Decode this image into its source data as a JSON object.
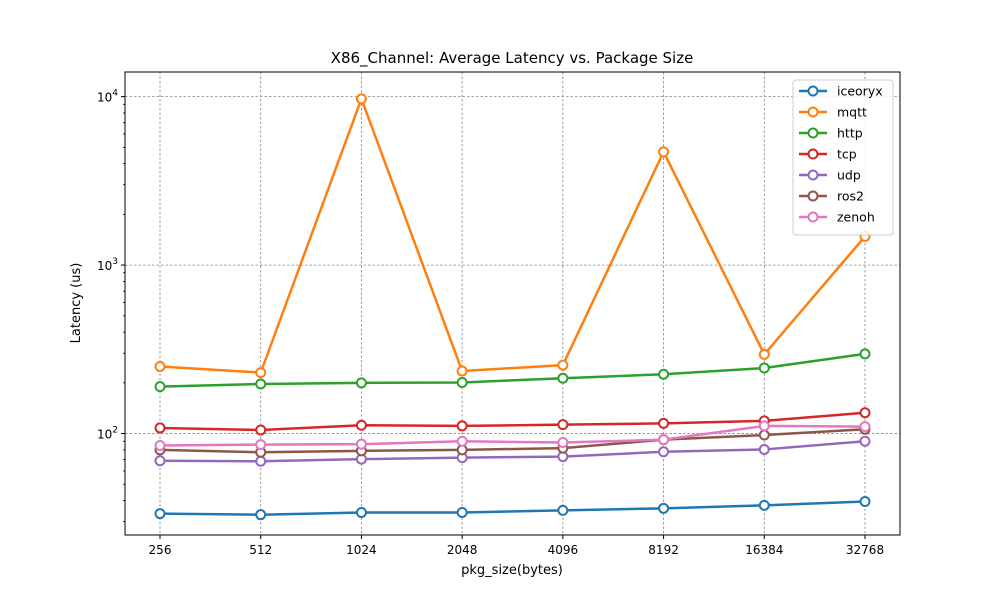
{
  "chart_data": {
    "type": "line",
    "title": "X86_Channel: Average Latency vs. Package Size",
    "xlabel": "pkg_size(bytes)",
    "ylabel": "Latency (us)",
    "yscale": "log",
    "ylim": [
      25,
      14000
    ],
    "grid": true,
    "legend_position": "top-right",
    "categories": [
      "256",
      "512",
      "1024",
      "2048",
      "4096",
      "8192",
      "16384",
      "32768"
    ],
    "y_ticks": [
      {
        "value": 100,
        "base": "10",
        "exp": "2"
      },
      {
        "value": 1000,
        "base": "10",
        "exp": "3"
      },
      {
        "value": 10000,
        "base": "10",
        "exp": "4"
      }
    ],
    "series": [
      {
        "name": "iceoryx",
        "color": "#1f77b4",
        "values": [
          33.5,
          33,
          34,
          34,
          35,
          36,
          37.5,
          39.5
        ]
      },
      {
        "name": "mqtt",
        "color": "#ff7f0e",
        "values": [
          250,
          230,
          9700,
          235,
          255,
          4700,
          295,
          1480
        ]
      },
      {
        "name": "http",
        "color": "#2ca02c",
        "values": [
          190,
          197,
          200,
          201,
          213,
          225,
          245,
          297
        ]
      },
      {
        "name": "tcp",
        "color": "#d62728",
        "values": [
          108,
          105,
          112,
          111,
          113,
          115,
          119,
          133
        ]
      },
      {
        "name": "udp",
        "color": "#9467bd",
        "values": [
          69,
          68.5,
          70.5,
          72,
          73,
          78,
          80.5,
          90
        ]
      },
      {
        "name": "ros2",
        "color": "#8c564b",
        "values": [
          80,
          77.5,
          79,
          80,
          82,
          92,
          98,
          106
        ]
      },
      {
        "name": "zenoh",
        "color": "#e377c2",
        "values": [
          85,
          86,
          86.5,
          90,
          88.5,
          92,
          111,
          110
        ]
      }
    ]
  }
}
